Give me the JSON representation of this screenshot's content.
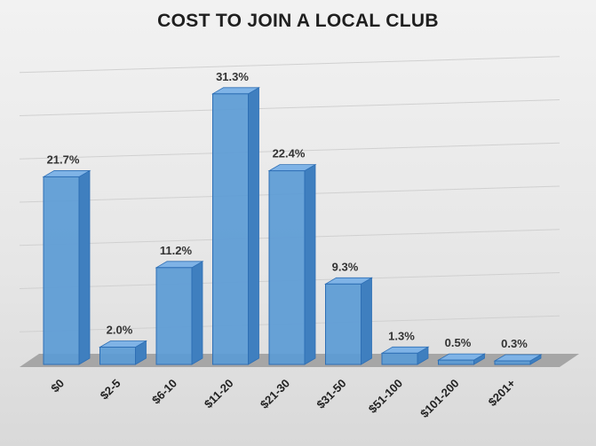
{
  "chart_data": {
    "type": "bar",
    "title": "COST TO JOIN A LOCAL CLUB",
    "xlabel": "",
    "ylabel": "",
    "categories": [
      "$0",
      "$2-5",
      "$6-10",
      "$11-20",
      "$21-30",
      "$31-50",
      "$51-100",
      "$101-200",
      "$201+"
    ],
    "values": [
      21.7,
      2.0,
      11.2,
      31.3,
      22.4,
      9.3,
      1.3,
      0.5,
      0.3
    ],
    "data_labels": [
      "21.7%",
      "2.0%",
      "11.2%",
      "31.3%",
      "22.4%",
      "9.3%",
      "1.3%",
      "0.5%",
      "0.3%"
    ],
    "ylim": [
      0,
      35
    ],
    "grid": true,
    "legend": "none",
    "colors": {
      "bar_front": "#5b9bd5",
      "bar_side": "#3f7fbf",
      "bar_top": "#7fb3e6",
      "bar_edge": "#2e6fb5",
      "floor": "#a6a6a6",
      "gridline": "#d0d0d0"
    }
  }
}
